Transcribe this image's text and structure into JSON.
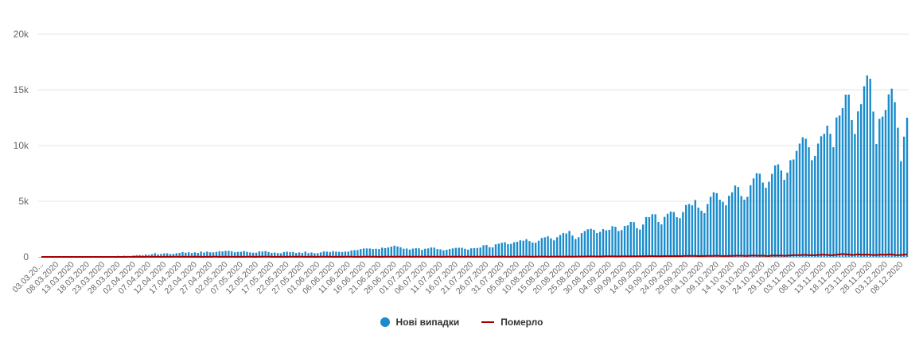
{
  "chart_data": {
    "type": "bar",
    "title": "",
    "xlabel": "",
    "ylabel": "",
    "ylim": [
      0,
      20000
    ],
    "y_ticks": [
      0,
      5000,
      10000,
      15000,
      20000
    ],
    "y_tick_labels": [
      "0",
      "5k",
      "10k",
      "15k",
      "20k"
    ],
    "grid": true,
    "legend_position": "bottom-center",
    "start_date": "03.03.2020",
    "x_tick_step_days": 5,
    "x_tick_labels": [
      "03.03.20...",
      "08.03.2020",
      "13.03.2020",
      "18.03.2020",
      "23.03.2020",
      "28.03.2020",
      "02.04.2020",
      "07.04.2020",
      "12.04.2020",
      "17.04.2020",
      "22.04.2020",
      "27.04.2020",
      "02.05.2020",
      "07.05.2020",
      "12.05.2020",
      "17.05.2020",
      "22.05.2020",
      "27.05.2020",
      "01.06.2020",
      "06.06.2020",
      "11.06.2020",
      "16.06.2020",
      "21.06.2020",
      "26.06.2020",
      "01.07.2020",
      "06.07.2020",
      "11.07.2020",
      "16.07.2020",
      "21.07.2020",
      "26.07.2020",
      "31.07.2020",
      "05.08.2020",
      "10.08.2020",
      "15.08.2020",
      "20.08.2020",
      "25.08.2020",
      "30.08.2020",
      "04.09.2020",
      "09.09.2020",
      "14.09.2020",
      "19.09.2020",
      "24.09.2020",
      "29.09.2020",
      "04.10.2020",
      "09.10.2020",
      "14.10.2020",
      "19.10.2020",
      "24.10.2020",
      "29.10.2020",
      "03.11.2020",
      "08.11.2020",
      "13.11.2020",
      "18.11.2020",
      "23.11.2020",
      "28.11.2020",
      "03.12.2020",
      "08.12.2020"
    ],
    "series": [
      {
        "name": "Нові випадки",
        "type": "bar",
        "color": "#1a8ccc",
        "values": [
          1,
          0,
          0,
          0,
          0,
          0,
          0,
          0,
          0,
          0,
          1,
          1,
          0,
          0,
          2,
          4,
          7,
          10,
          14,
          21,
          37,
          47,
          29,
          43,
          43,
          92,
          62,
          107,
          70,
          69,
          128,
          157,
          173,
          150,
          215,
          176,
          240,
          331,
          223,
          269,
          314,
          325,
          262,
          278,
          325,
          361,
          437,
          378,
          416,
          351,
          410,
          352,
          477,
          392,
          477,
          414,
          406,
          455,
          513,
          492,
          540,
          550,
          507,
          418,
          455,
          454,
          528,
          462,
          400,
          375,
          380,
          501,
          483,
          528,
          445,
          367,
          390,
          342,
          325,
          434,
          468,
          440,
          443,
          347,
          402,
          354,
          475,
          339,
          401,
          327,
          339,
          407,
          492,
          473,
          439,
          516,
          479,
          456,
          435,
          476,
          480,
          583,
          613,
          615,
          707,
          761,
          762,
          756,
          714,
          736,
          710,
          832,
          791,
          849,
          923,
          1013,
          940,
          866,
          738,
          753,
          659,
          747,
          780,
          770,
          634,
          732,
          765,
          843,
          834,
          703,
          677,
          593,
          642,
          706,
          763,
          812,
          823,
          818,
          732,
          650,
          769,
          792,
          799,
          842,
          1048,
          1072,
          877,
          860,
          1132,
          1197,
          1271,
          1318,
          1142,
          1166,
          1317,
          1354,
          1489,
          1453,
          1592,
          1417,
          1290,
          1271,
          1453,
          1699,
          1758,
          1847,
          1669,
          1489,
          1767,
          1967,
          2134,
          2106,
          2328,
          1922,
          1609,
          1767,
          2135,
          2328,
          2481,
          2523,
          2436,
          2141,
          2250,
          2495,
          2385,
          2426,
          2760,
          2703,
          2326,
          2411,
          2779,
          2836,
          3144,
          3130,
          2581,
          2457,
          2905,
          3584,
          3570,
          3833,
          3828,
          3144,
          2917,
          3595,
          3878,
          4069,
          4027,
          3564,
          3480,
          4028,
          4661,
          4751,
          4633,
          5111,
          4426,
          4153,
          3932,
          4753,
          5397,
          5804,
          5724,
          5133,
          4945,
          4633,
          5492,
          5804,
          6410,
          6281,
          5469,
          5133,
          5397,
          6430,
          7053,
          7517,
          7474,
          6677,
          6209,
          6747,
          7458,
          8214,
          8312,
          7760,
          6927,
          7567,
          8687,
          8752,
          9524,
          10179,
          10746,
          10611,
          9850,
          8687,
          9070,
          10179,
          10835,
          11057,
          11787,
          11057,
          9850,
          12524,
          12697,
          13357,
          14575,
          14580,
          12287,
          11035,
          13076,
          13713,
          15331,
          16294,
          16000,
          13049,
          10136,
          12400,
          12600,
          13200,
          14600,
          15100,
          13900,
          11600,
          8600,
          10800,
          12500
        ]
      },
      {
        "name": "Померло",
        "type": "line",
        "color": "#a30000",
        "values": [
          0,
          0,
          0,
          0,
          0,
          0,
          0,
          0,
          0,
          0,
          0,
          0,
          0,
          0,
          0,
          1,
          0,
          1,
          0,
          1,
          0,
          2,
          1,
          1,
          0,
          1,
          3,
          0,
          5,
          4,
          2,
          5,
          5,
          3,
          4,
          5,
          4,
          7,
          8,
          9,
          10,
          6,
          8,
          11,
          13,
          9,
          12,
          9,
          11,
          7,
          13,
          8,
          16,
          9,
          8,
          5,
          11,
          14,
          8,
          10,
          12,
          9,
          10,
          5,
          12,
          8,
          10,
          14,
          14,
          9,
          8,
          12,
          13,
          11,
          16,
          9,
          10,
          8,
          4,
          13,
          10,
          11,
          11,
          7,
          12,
          16,
          10,
          8,
          14,
          8,
          10,
          12,
          11,
          12,
          16,
          8,
          11,
          8,
          9,
          11,
          13,
          12,
          10,
          9,
          8,
          14,
          19,
          16,
          14,
          14,
          9,
          10,
          18,
          19,
          22,
          15,
          17,
          19,
          12,
          13,
          14,
          14,
          16,
          11,
          12,
          14,
          15,
          22,
          19,
          11,
          10,
          13,
          20,
          17,
          16,
          18,
          18,
          20,
          19,
          13,
          18,
          21,
          20,
          19,
          19,
          18,
          17,
          14,
          20,
          23,
          26,
          23,
          21,
          16,
          21,
          24,
          28,
          26,
          29,
          16,
          21,
          23,
          29,
          25,
          30,
          23,
          28,
          31,
          27,
          32,
          26,
          30,
          38,
          22,
          31,
          34,
          35,
          38,
          40,
          42,
          43,
          36,
          34,
          41,
          49,
          48,
          52,
          44,
          46,
          48,
          54,
          56,
          53,
          52,
          57,
          61,
          65,
          61,
          70,
          69,
          63,
          62,
          64,
          68,
          71,
          70,
          73,
          77,
          72,
          79,
          86,
          90,
          84,
          86,
          71,
          80,
          78,
          87,
          91,
          94,
          109,
          93,
          81,
          77,
          89,
          87,
          108,
          105,
          111,
          84,
          92,
          111,
          127,
          108,
          106,
          112,
          96,
          79,
          119,
          114,
          116,
          121,
          100,
          116,
          134,
          154,
          160,
          158,
          173,
          183,
          148,
          162,
          150,
          178,
          193,
          194,
          177,
          147,
          159,
          198,
          226,
          256,
          236,
          211,
          181,
          188,
          242,
          199,
          208,
          210,
          196,
          173,
          172,
          201,
          211,
          187,
          218,
          220,
          174,
          166,
          180,
          191,
          240
        ]
      }
    ]
  },
  "legend": {
    "cases_label": "Нові випадки",
    "deaths_label": "Померло"
  }
}
